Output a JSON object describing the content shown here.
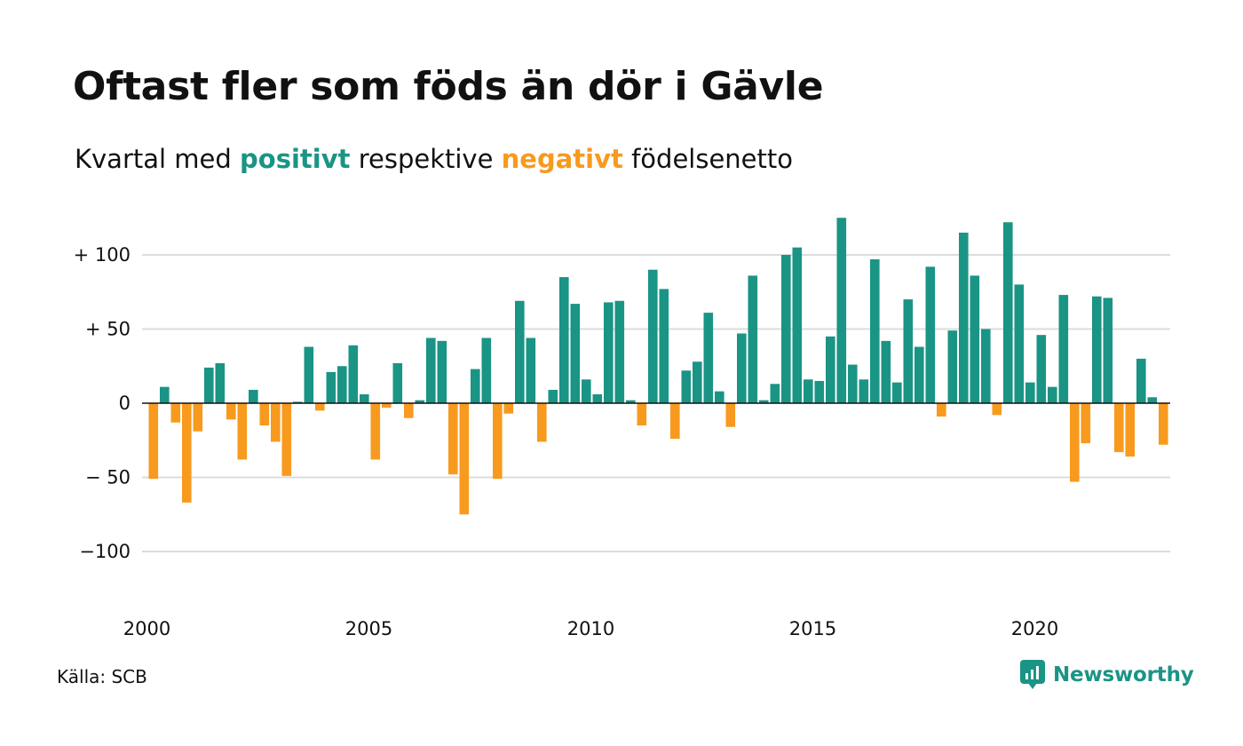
{
  "title": "Oftast fler som föds än dör i Gävle",
  "subtitle": {
    "before": "Kvartal med",
    "positive": "positivt",
    "middle": "respektive",
    "negative": "negativt",
    "after": "födelsenetto"
  },
  "source": "Källa: SCB",
  "brand": "Newsworthy",
  "colors": {
    "positive": "#1a9485",
    "negative": "#f79a1e",
    "grid": "#dcdcdc",
    "text": "#111111"
  },
  "chart_data": {
    "type": "bar",
    "title": "Oftast fler som föds än dör i Gävle",
    "subtitle": "Kvartal med positivt respektive negativt födelsenetto",
    "xlabel": "",
    "ylabel": "",
    "ylim": [
      -130,
      130
    ],
    "grid": true,
    "y_ticks": [
      {
        "value": 100,
        "label": "+ 100"
      },
      {
        "value": 50,
        "label": "+  50"
      },
      {
        "value": 0,
        "label": "0"
      },
      {
        "value": -50,
        "label": "− 50"
      },
      {
        "value": -100,
        "label": "−100"
      }
    ],
    "x_ticks": [
      "2000",
      "2005",
      "2010",
      "2015",
      "2020"
    ],
    "x_start_year": 2000,
    "periods_per_year": 4,
    "values": [
      -51,
      11,
      -13,
      -67,
      -19,
      24,
      27,
      -11,
      -38,
      9,
      -15,
      -26,
      -49,
      1,
      38,
      -5,
      21,
      25,
      39,
      6,
      -38,
      -3,
      27,
      -10,
      2,
      44,
      42,
      -48,
      -75,
      23,
      44,
      -51,
      -7,
      69,
      44,
      -26,
      9,
      85,
      67,
      16,
      6,
      68,
      69,
      2,
      -15,
      90,
      77,
      -24,
      22,
      28,
      61,
      8,
      -16,
      47,
      86,
      2,
      13,
      100,
      105,
      16,
      15,
      45,
      125,
      26,
      16,
      97,
      42,
      14,
      70,
      38,
      92,
      -9,
      49,
      115,
      86,
      50,
      -8,
      122,
      80,
      14,
      46,
      11,
      73,
      -53,
      -27,
      72,
      71,
      -33,
      -36,
      30,
      4,
      -28
    ]
  }
}
